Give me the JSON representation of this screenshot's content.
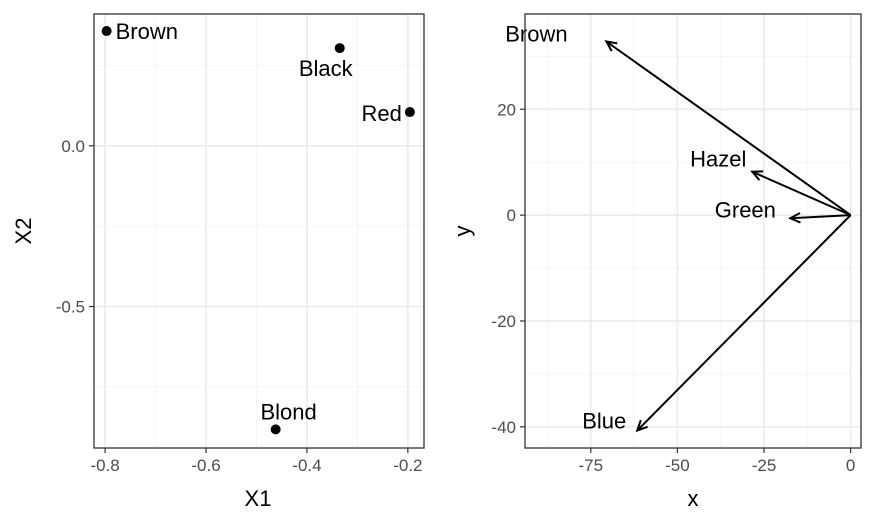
{
  "chart_data": [
    {
      "type": "scatter",
      "xlabel": "X1",
      "ylabel": "X2",
      "xlim": [
        -0.822,
        -0.168
      ],
      "ylim": [
        -0.94,
        0.41
      ],
      "xticks": [
        -0.8,
        -0.6,
        -0.4,
        -0.2
      ],
      "xtick_labels": [
        "-0.8",
        "-0.6",
        "-0.4",
        "-0.2"
      ],
      "yticks": [
        -0.5,
        0.0
      ],
      "ytick_labels": [
        "-0.5",
        "0.0"
      ],
      "grid": true,
      "points": [
        {
          "label": "Brown",
          "x": -0.797,
          "y": 0.357
        },
        {
          "label": "Black",
          "x": -0.335,
          "y": 0.304
        },
        {
          "label": "Red",
          "x": -0.196,
          "y": 0.105
        },
        {
          "label": "Blond",
          "x": -0.462,
          "y": -0.882
        }
      ]
    },
    {
      "type": "vector",
      "xlabel": "x",
      "ylabel": "y",
      "xlim": [
        -94,
        3
      ],
      "ylim": [
        -44,
        38
      ],
      "xticks": [
        -75,
        -50,
        -25,
        0
      ],
      "xtick_labels": [
        "-75",
        "-50",
        "-25",
        "0"
      ],
      "yticks": [
        -40,
        -20,
        0,
        20
      ],
      "ytick_labels": [
        "-40",
        "-20",
        "0",
        "20"
      ],
      "grid": true,
      "origin": [
        0,
        0
      ],
      "vectors": [
        {
          "label": "Brown",
          "x": -70.5,
          "y": 32.8
        },
        {
          "label": "Hazel",
          "x": -28.4,
          "y": 8.2
        },
        {
          "label": "Green",
          "x": -17.4,
          "y": -0.6
        },
        {
          "label": "Blue",
          "x": -61.6,
          "y": -40.7
        }
      ]
    }
  ],
  "colors": {
    "panel_border": "#333333",
    "grid_major": "#ebebeb",
    "grid_minor": "#f5f5f5",
    "ink": "#000000",
    "tick_text": "#4d4d4d"
  }
}
